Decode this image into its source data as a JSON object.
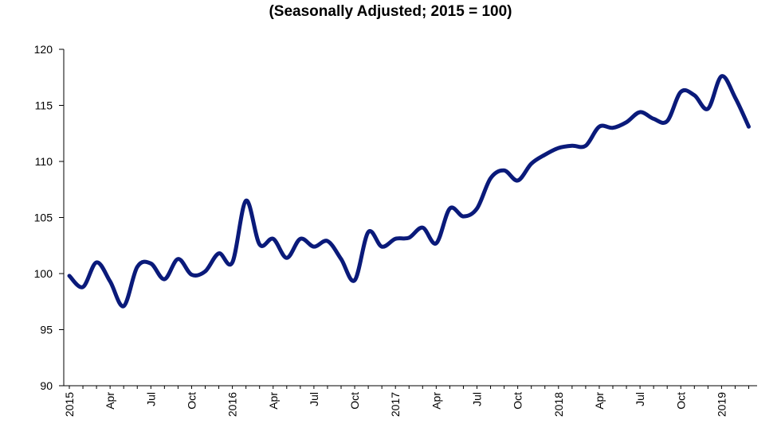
{
  "chart_data": {
    "type": "line",
    "title": "",
    "subtitle": "(Seasonally Adjusted; 2015 = 100)",
    "xlabel": "",
    "ylabel": "",
    "ylim": [
      90,
      120
    ],
    "yticks": [
      90,
      95,
      100,
      105,
      110,
      115,
      120
    ],
    "grid": false,
    "legend": "none",
    "line_color": "#0A1A7A",
    "xtick_labels": [
      "2015",
      "Apr",
      "Jul",
      "Oct",
      "2016",
      "Apr",
      "Jul",
      "Oct",
      "2017",
      "Apr",
      "Jul",
      "Oct",
      "2018",
      "Apr",
      "Jul",
      "Oct",
      "2019"
    ],
    "series": [
      {
        "x": [
          "2015-01",
          "2015-02",
          "2015-03",
          "2015-04",
          "2015-05",
          "2015-06",
          "2015-07",
          "2015-08",
          "2015-09",
          "2015-10",
          "2015-11",
          "2015-12",
          "2016-01",
          "2016-02",
          "2016-03",
          "2016-04",
          "2016-05",
          "2016-06",
          "2016-07",
          "2016-08",
          "2016-09",
          "2016-10",
          "2016-11",
          "2016-12",
          "2017-01",
          "2017-02",
          "2017-03",
          "2017-04",
          "2017-05",
          "2017-06",
          "2017-07",
          "2017-08",
          "2017-09",
          "2017-10",
          "2017-11",
          "2017-12",
          "2018-01",
          "2018-02",
          "2018-03",
          "2018-04",
          "2018-05",
          "2018-06",
          "2018-07",
          "2018-08",
          "2018-09",
          "2018-10",
          "2018-11",
          "2018-12",
          "2019-01",
          "2019-02",
          "2019-03"
        ],
        "values": [
          99.8,
          98.8,
          101.0,
          99.3,
          97.1,
          100.6,
          100.9,
          99.5,
          101.3,
          99.9,
          100.2,
          101.8,
          101.0,
          106.5,
          102.6,
          103.1,
          101.4,
          103.1,
          102.4,
          102.9,
          101.3,
          99.4,
          103.7,
          102.4,
          103.1,
          103.2,
          104.1,
          102.7,
          105.8,
          105.1,
          105.8,
          108.5,
          109.2,
          108.3,
          109.8,
          110.6,
          111.2,
          111.4,
          111.4,
          113.1,
          113.0,
          113.5,
          114.4,
          113.8,
          113.6,
          116.2,
          115.9,
          114.7,
          117.6,
          115.7,
          113.1
        ]
      }
    ]
  }
}
